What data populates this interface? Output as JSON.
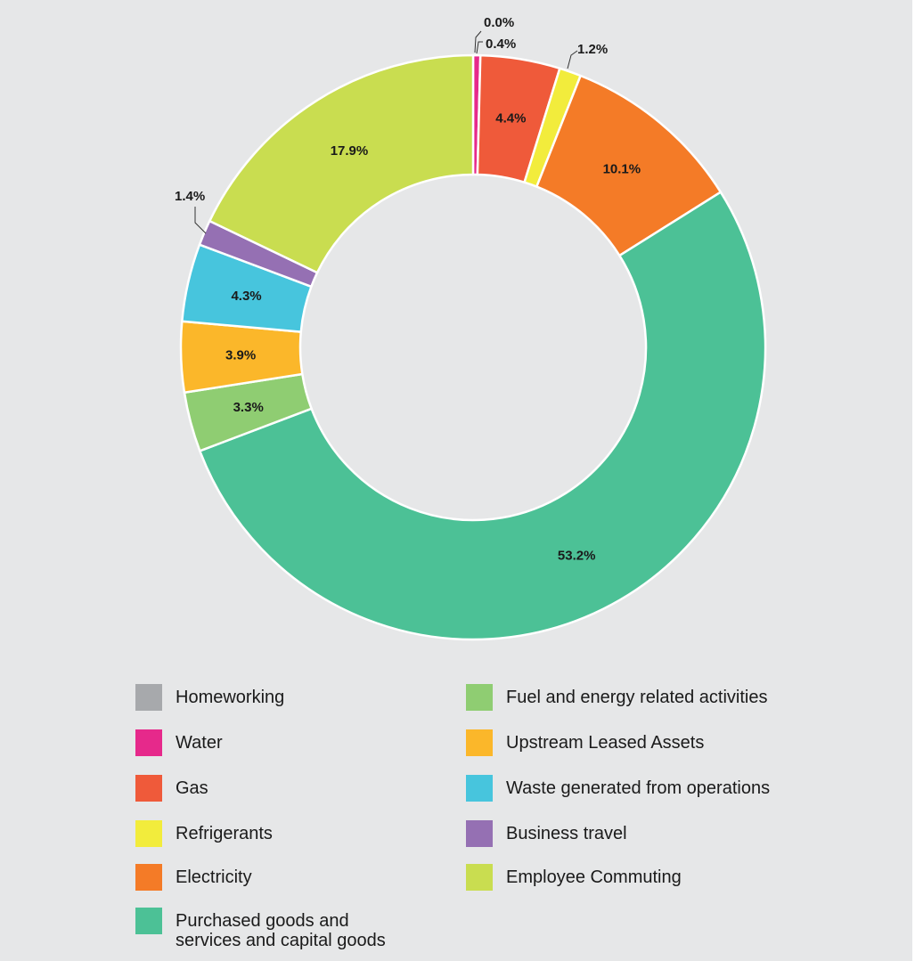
{
  "chart_data": {
    "type": "pie",
    "subtype": "donut",
    "slices": [
      {
        "label": "Homeworking",
        "value": 0.0,
        "display": "0.0%",
        "color": "#a7a9ac"
      },
      {
        "label": "Water",
        "value": 0.4,
        "display": "0.4%",
        "color": "#e6298b"
      },
      {
        "label": "Gas",
        "value": 4.4,
        "display": "4.4%",
        "color": "#ef5a3a"
      },
      {
        "label": "Refrigerants",
        "value": 1.2,
        "display": "1.2%",
        "color": "#f2ec3c"
      },
      {
        "label": "Electricity",
        "value": 10.1,
        "display": "10.1%",
        "color": "#f47b27"
      },
      {
        "label": "Purchased goods and services and capital goods",
        "value": 53.2,
        "display": "53.2%",
        "color": "#4cc196"
      },
      {
        "label": "Fuel and energy related activities",
        "value": 3.3,
        "display": "3.3%",
        "color": "#8fcd72"
      },
      {
        "label": "Upstream Leased Assets",
        "value": 3.9,
        "display": "3.9%",
        "color": "#fbb72a"
      },
      {
        "label": "Waste generated from operations",
        "value": 4.3,
        "display": "4.3%",
        "color": "#47c5dd"
      },
      {
        "label": "Business travel",
        "value": 1.4,
        "display": "1.4%",
        "color": "#9570b3"
      },
      {
        "label": "Employee Commuting",
        "value": 17.9,
        "display": "17.9%",
        "color": "#c9dd50"
      }
    ],
    "legend_position": "bottom"
  },
  "legend": {
    "items": [
      {
        "label": "Homeworking",
        "color": "#a7a9ac"
      },
      {
        "label": "Water",
        "color": "#e6298b"
      },
      {
        "label": "Gas",
        "color": "#ef5a3a"
      },
      {
        "label": "Refrigerants",
        "color": "#f2ec3c"
      },
      {
        "label": "Electricity",
        "color": "#f47b27"
      },
      {
        "label": "Purchased goods and\nservices and capital goods",
        "color": "#4cc196"
      },
      {
        "label": "Fuel and energy related activities",
        "color": "#8fcd72"
      },
      {
        "label": "Upstream Leased Assets",
        "color": "#fbb72a"
      },
      {
        "label": "Waste generated from operations",
        "color": "#47c5dd"
      },
      {
        "label": "Business travel",
        "color": "#9570b3"
      },
      {
        "label": "Employee Commuting",
        "color": "#c9dd50"
      }
    ]
  }
}
